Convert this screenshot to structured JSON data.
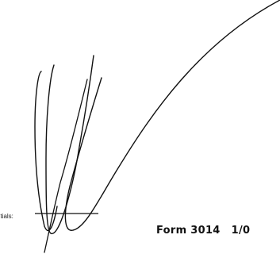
{
  "footer": {
    "initials_label": "Initials:",
    "form_number": "Form 3014",
    "form_revision": "1/0"
  },
  "colors": {
    "ink": "#111111",
    "paper": "#ffffff"
  }
}
